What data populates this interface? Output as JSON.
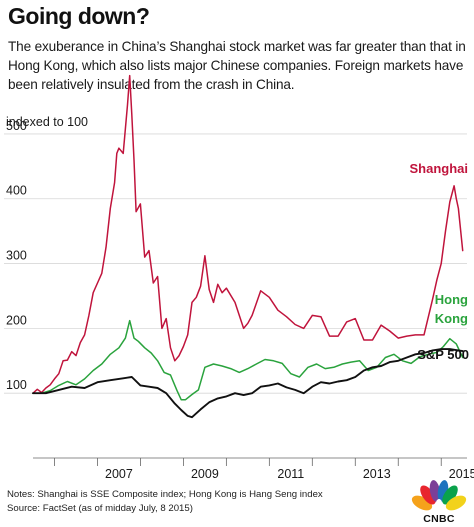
{
  "header": {
    "title": "Going down?",
    "subtitle": "The exuberance in China’s Shanghai stock market was far greater than that in Hong Kong, which also lists major Chinese companies. Foreign markets have been relatively insulated from the crash in China."
  },
  "chart_data": {
    "type": "line",
    "ylabel": "indexed to 100",
    "xlim": [
      2005.5,
      2015.6
    ],
    "ylim": [
      0,
      540
    ],
    "y_ticks": [
      100,
      200,
      300,
      400,
      500
    ],
    "x_ticks": [
      2007,
      2009,
      2011,
      2013,
      2015
    ],
    "x_tick_labels": [
      "2007",
      "2009",
      "2011",
      "2013",
      "2015"
    ],
    "grid": "horizontal",
    "series": [
      {
        "name": "Shanghai",
        "color": "#c0143c",
        "x": [
          2005.5,
          2005.6,
          2005.7,
          2005.8,
          2005.9,
          2006.0,
          2006.1,
          2006.2,
          2006.3,
          2006.4,
          2006.5,
          2006.6,
          2006.7,
          2006.8,
          2006.9,
          2007.0,
          2007.1,
          2007.2,
          2007.3,
          2007.4,
          2007.45,
          2007.5,
          2007.6,
          2007.7,
          2007.75,
          2007.8,
          2007.85,
          2007.9,
          2008.0,
          2008.1,
          2008.2,
          2008.3,
          2008.4,
          2008.5,
          2008.6,
          2008.7,
          2008.8,
          2008.9,
          2009.0,
          2009.1,
          2009.2,
          2009.3,
          2009.4,
          2009.5,
          2009.6,
          2009.7,
          2009.8,
          2009.9,
          2010.0,
          2010.2,
          2010.4,
          2010.5,
          2010.6,
          2010.8,
          2011.0,
          2011.2,
          2011.4,
          2011.6,
          2011.8,
          2012.0,
          2012.2,
          2012.4,
          2012.6,
          2012.8,
          2013.0,
          2013.2,
          2013.4,
          2013.6,
          2013.8,
          2014.0,
          2014.2,
          2014.4,
          2014.6,
          2014.8,
          2014.9,
          2015.0,
          2015.1,
          2015.2,
          2015.3,
          2015.35,
          2015.4,
          2015.5
        ],
        "values": [
          100,
          106,
          101,
          108,
          113,
          122,
          130,
          150,
          151,
          164,
          158,
          178,
          190,
          220,
          255,
          270,
          285,
          325,
          385,
          425,
          470,
          478,
          470,
          545,
          590,
          530,
          460,
          380,
          392,
          310,
          320,
          270,
          280,
          200,
          215,
          170,
          150,
          158,
          172,
          190,
          240,
          248,
          265,
          312,
          260,
          240,
          268,
          255,
          262,
          240,
          200,
          208,
          220,
          258,
          248,
          228,
          218,
          206,
          200,
          220,
          218,
          188,
          188,
          210,
          215,
          182,
          182,
          205,
          196,
          185,
          188,
          190,
          190,
          245,
          275,
          300,
          350,
          395,
          420,
          400,
          385,
          320
        ]
      },
      {
        "name": "Hong Kong",
        "color": "#2aa33d",
        "x": [
          2005.5,
          2005.7,
          2005.9,
          2006.1,
          2006.3,
          2006.5,
          2006.7,
          2006.9,
          2007.1,
          2007.3,
          2007.5,
          2007.65,
          2007.75,
          2007.85,
          2007.95,
          2008.1,
          2008.25,
          2008.4,
          2008.55,
          2008.7,
          2008.85,
          2008.95,
          2009.05,
          2009.2,
          2009.35,
          2009.5,
          2009.7,
          2009.9,
          2010.1,
          2010.3,
          2010.5,
          2010.7,
          2010.9,
          2011.1,
          2011.3,
          2011.5,
          2011.7,
          2011.9,
          2012.1,
          2012.3,
          2012.5,
          2012.7,
          2012.9,
          2013.1,
          2013.3,
          2013.5,
          2013.7,
          2013.9,
          2014.1,
          2014.3,
          2014.5,
          2014.7,
          2014.9,
          2015.05,
          2015.2,
          2015.35,
          2015.5
        ],
        "values": [
          100,
          100,
          104,
          112,
          118,
          113,
          122,
          135,
          145,
          160,
          170,
          185,
          212,
          185,
          180,
          170,
          162,
          150,
          132,
          128,
          104,
          90,
          90,
          98,
          105,
          140,
          145,
          142,
          138,
          132,
          138,
          145,
          152,
          150,
          146,
          130,
          125,
          140,
          145,
          138,
          140,
          145,
          148,
          150,
          135,
          140,
          155,
          160,
          150,
          146,
          156,
          160,
          163,
          172,
          184,
          176,
          155
        ]
      },
      {
        "name": "S&P 500",
        "color": "#111111",
        "x": [
          2005.5,
          2005.8,
          2006.1,
          2006.4,
          2006.7,
          2007.0,
          2007.3,
          2007.6,
          2007.8,
          2008.0,
          2008.2,
          2008.4,
          2008.6,
          2008.8,
          2008.95,
          2009.1,
          2009.2,
          2009.4,
          2009.6,
          2009.8,
          2010.0,
          2010.2,
          2010.4,
          2010.6,
          2010.8,
          2011.0,
          2011.2,
          2011.4,
          2011.6,
          2011.8,
          2012.0,
          2012.2,
          2012.4,
          2012.6,
          2012.8,
          2013.0,
          2013.2,
          2013.4,
          2013.6,
          2013.8,
          2014.0,
          2014.2,
          2014.4,
          2014.6,
          2014.8,
          2015.0,
          2015.2,
          2015.4,
          2015.5
        ],
        "values": [
          100,
          100,
          105,
          110,
          108,
          117,
          120,
          123,
          125,
          112,
          110,
          108,
          100,
          84,
          74,
          65,
          63,
          75,
          86,
          92,
          95,
          100,
          97,
          100,
          110,
          112,
          115,
          109,
          105,
          100,
          110,
          117,
          115,
          118,
          120,
          125,
          135,
          140,
          142,
          148,
          150,
          155,
          160,
          162,
          166,
          168,
          168,
          166,
          165
        ]
      }
    ],
    "series_labels": {
      "shanghai": "Shanghai",
      "hongkong_line1": "Hong",
      "hongkong_line2": "Kong",
      "sp500": "S&P 500"
    }
  },
  "footer": {
    "notes": "Notes: Shanghai is SSE Composite index; Hong Kong is Hang Seng index",
    "source": "Source: FactSet (as of midday July, 8 2015)",
    "logo": "CNBC"
  }
}
